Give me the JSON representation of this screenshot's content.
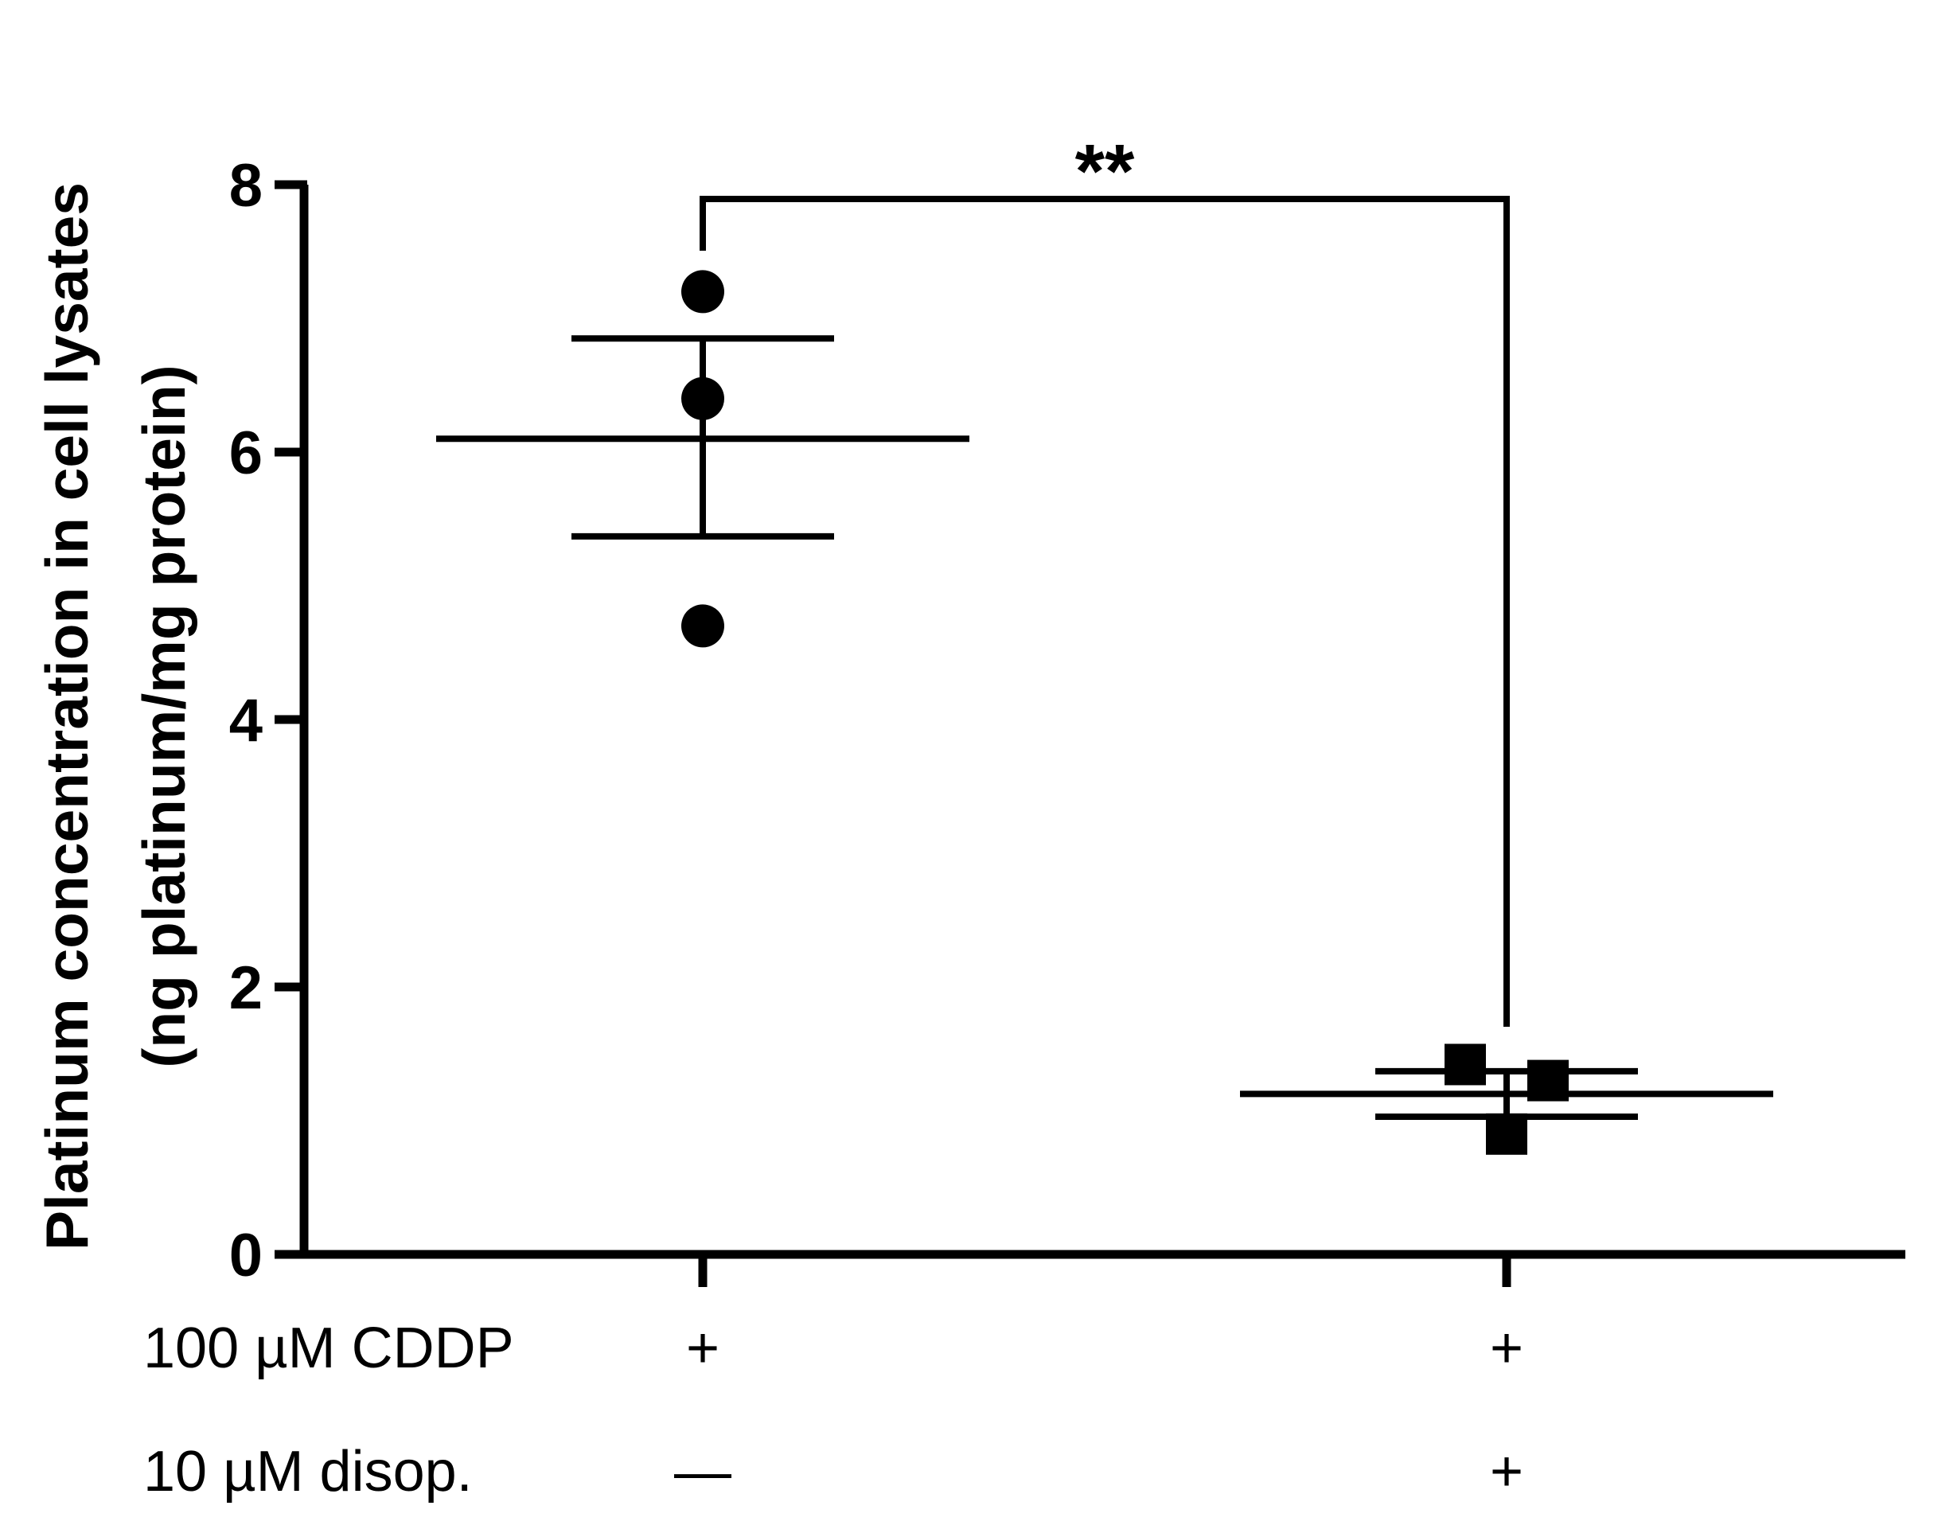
{
  "chart_data": {
    "type": "scatter",
    "ylabel_line1": "Platinum concentration in cell lysates",
    "ylabel_line2": "(ng platinum/mg protein)",
    "ylim": [
      0,
      8
    ],
    "yticks": [
      "0",
      "2",
      "4",
      "6",
      "8"
    ],
    "groups": [
      {
        "marker": "circle",
        "points": [
          7.2,
          6.4,
          4.7
        ],
        "mean": 6.1,
        "sem_upper": 6.85,
        "sem_lower": 5.37
      },
      {
        "marker": "square",
        "points": [
          1.42,
          1.3,
          0.9
        ],
        "mean": 1.2,
        "sem_upper": 1.37,
        "sem_lower": 1.03
      }
    ],
    "condition_rows": [
      {
        "label": "100 µM CDDP",
        "values": [
          "+",
          "+"
        ]
      },
      {
        "label": "10 µM disop.",
        "values": [
          "—",
          "+"
        ]
      }
    ],
    "significance": "**"
  }
}
